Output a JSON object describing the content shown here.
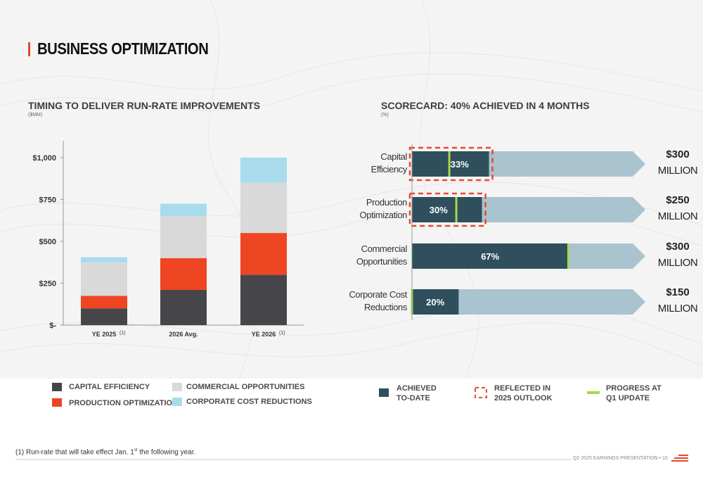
{
  "page": {
    "title": "BUSINESS OPTIMIZATION",
    "footnote_prefix": "(1) Run-rate that will take effect Jan. 1",
    "footnote_sup": "st",
    "footnote_suffix": " the following year.",
    "footer": "Q2 2025 EARNINGS PRESENTATION  •  10"
  },
  "colors": {
    "accent": "#e8492b",
    "capital_efficiency": "#46464a",
    "production_optimization": "#ee4523",
    "commercial_opportunities": "#d9d9d9",
    "corporate_cost_reductions": "#a8dcec",
    "achieved": "#2f4f5c",
    "remaining": "#a9c3cf",
    "progress": "#a6d84a",
    "outlook_dash": "#e8492b"
  },
  "left_section": {
    "title": "TIMING TO DELIVER RUN-RATE IMPROVEMENTS",
    "subtitle": "($MM)"
  },
  "right_section": {
    "title": "SCORECARD: 40% ACHIEVED IN 4 MONTHS",
    "subtitle": "(%)"
  },
  "legend_left": [
    {
      "label": "CAPITAL EFFICIENCY",
      "color": "#46464a"
    },
    {
      "label": "PRODUCTION OPTIMIZATION",
      "color": "#ee4523"
    },
    {
      "label": "COMMERCIAL OPPORTUNITIES",
      "color": "#d9d9d9"
    },
    {
      "label": "CORPORATE COST REDUCTIONS",
      "color": "#a8dcec"
    }
  ],
  "legend_right": [
    {
      "label_line1": "ACHIEVED",
      "label_line2": "TO-DATE",
      "icon": "achieved-square"
    },
    {
      "label_line1": "REFLECTED IN",
      "label_line2": "2025 OUTLOOK",
      "icon": "dashed-box"
    },
    {
      "label_line1": "PROGRESS AT",
      "label_line2": "Q1 UPDATE",
      "icon": "green-line"
    }
  ],
  "chart_data": [
    {
      "type": "bar",
      "stacked": true,
      "categories": [
        "YE 2025",
        "2026 Avg.",
        "YE 2026"
      ],
      "category_superscripts": [
        "(1)",
        "",
        "(1)"
      ],
      "y_tick_labels": [
        "$-",
        "$250",
        "$500",
        "$750",
        "$1,000"
      ],
      "y_ticks": [
        0,
        250,
        500,
        750,
        1000
      ],
      "ylim": [
        0,
        1000
      ],
      "series": [
        {
          "name": "CAPITAL EFFICIENCY",
          "color": "#46464a",
          "values": [
            100,
            210,
            300
          ]
        },
        {
          "name": "PRODUCTION OPTIMIZATION",
          "color": "#ee4523",
          "values": [
            75,
            190,
            250
          ]
        },
        {
          "name": "COMMERCIAL OPPORTUNITIES",
          "color": "#d9d9d9",
          "values": [
            200,
            250,
            300
          ]
        },
        {
          "name": "CORPORATE COST REDUCTIONS",
          "color": "#a8dcec",
          "values": [
            30,
            75,
            150
          ]
        }
      ],
      "grid": false
    },
    {
      "type": "bar",
      "orientation": "horizontal",
      "categories": [
        [
          "Capital",
          "Efficiency"
        ],
        [
          "Production",
          "Optimization"
        ],
        [
          "Commercial",
          "Opportunities"
        ],
        [
          "Corporate Cost",
          "Reductions"
        ]
      ],
      "achieved_pct": [
        33,
        30,
        67,
        20
      ],
      "achieved_labels": [
        "33%",
        "30%",
        "67%",
        "20%"
      ],
      "q1_progress_pct": [
        16,
        19,
        67,
        0
      ],
      "outlook_pct": [
        33,
        30,
        null,
        null
      ],
      "targets": [
        {
          "amount": "$300",
          "unit": "MILLION"
        },
        {
          "amount": "$250",
          "unit": "MILLION"
        },
        {
          "amount": "$300",
          "unit": "MILLION"
        },
        {
          "amount": "$150",
          "unit": "MILLION"
        }
      ],
      "xlim": [
        0,
        100
      ]
    }
  ]
}
